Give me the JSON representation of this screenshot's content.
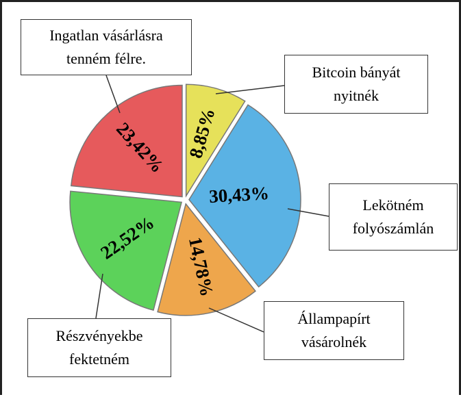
{
  "chart_data": {
    "type": "pie",
    "categories": [
      "Bitcoin bányát nyitnék",
      "Lekötném folyószámlán",
      "Állampapírt vásárolnék",
      "Részvényekbe fektetném",
      "Ingatlan vásárlásra tenném félre."
    ],
    "values": [
      8.85,
      30.43,
      14.78,
      22.52,
      23.42
    ],
    "value_labels": [
      "8,85%",
      "30,43%",
      "14,78%",
      "22,52%",
      "23,42%"
    ],
    "colors": [
      "#e6e15a",
      "#5ab2e4",
      "#eea64c",
      "#5cd25a",
      "#e65a5c"
    ]
  }
}
